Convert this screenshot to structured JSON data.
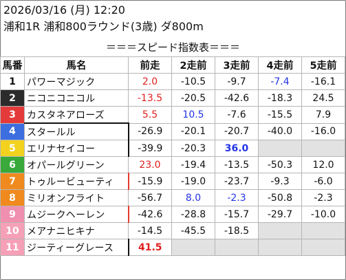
{
  "header": {
    "datetime": "2026/03/16 (月) 12:20",
    "race": "浦和1R 浦和800ラウンド(3歳) ダ800m"
  },
  "table": {
    "title": "＝＝＝スピード指数表＝＝＝",
    "columns": [
      "馬番",
      "馬名",
      "前走",
      "2走前",
      "3走前",
      "4走前",
      "5走前"
    ],
    "rows": [
      {
        "num": "1",
        "name": "パワーマジック",
        "bg": "#ffffff",
        "fg": "#111111",
        "values": [
          {
            "v": "2.0",
            "c": "red"
          },
          {
            "v": "-10.5",
            "c": ""
          },
          {
            "v": "-9.7",
            "c": ""
          },
          {
            "v": "-7.4",
            "c": "blue"
          },
          {
            "v": "-16.1",
            "c": ""
          }
        ]
      },
      {
        "num": "2",
        "name": "ニコニコニコル",
        "bg": "#2b2b2b",
        "fg": "#ffffff",
        "values": [
          {
            "v": "-13.5",
            "c": "red"
          },
          {
            "v": "-20.5",
            "c": ""
          },
          {
            "v": "-42.6",
            "c": ""
          },
          {
            "v": "-18.3",
            "c": ""
          },
          {
            "v": "24.5",
            "c": ""
          }
        ]
      },
      {
        "num": "3",
        "name": "カスタネアローズ",
        "bg": "#e53a3a",
        "fg": "#ffffff",
        "values": [
          {
            "v": "5.5",
            "c": "red"
          },
          {
            "v": "10.5",
            "c": "blue"
          },
          {
            "v": "-7.6",
            "c": ""
          },
          {
            "v": "-15.5",
            "c": ""
          },
          {
            "v": "7.9",
            "c": ""
          }
        ]
      },
      {
        "num": "4",
        "name": "スタールル",
        "bg": "#3d6ee0",
        "fg": "#ffffff",
        "values": [
          {
            "v": "-26.9",
            "c": ""
          },
          {
            "v": "-20.1",
            "c": ""
          },
          {
            "v": "-20.7",
            "c": ""
          },
          {
            "v": "-40.0",
            "c": ""
          },
          {
            "v": "-16.0",
            "c": ""
          }
        ]
      },
      {
        "num": "5",
        "name": "エリナセイコー",
        "bg": "#f2d21e",
        "fg": "#ffffff",
        "values": [
          {
            "v": "-39.9",
            "c": ""
          },
          {
            "v": "-20.3",
            "c": ""
          },
          {
            "v": "36.0",
            "c": "blue bold"
          },
          {
            "v": "",
            "c": "empty"
          },
          {
            "v": "",
            "c": "empty"
          }
        ]
      },
      {
        "num": "6",
        "name": "オパールグリーン",
        "bg": "#39a93b",
        "fg": "#ffffff",
        "values": [
          {
            "v": "23.0",
            "c": "red"
          },
          {
            "v": "-19.4",
            "c": ""
          },
          {
            "v": "-13.5",
            "c": ""
          },
          {
            "v": "-50.3",
            "c": ""
          },
          {
            "v": "12.0",
            "c": ""
          }
        ]
      },
      {
        "num": "7",
        "name": "トゥルービューティ",
        "bg": "#f08a1e",
        "fg": "#ffffff",
        "values": [
          {
            "v": "-15.9",
            "c": ""
          },
          {
            "v": "-19.0",
            "c": ""
          },
          {
            "v": "-23.7",
            "c": ""
          },
          {
            "v": "-9.3",
            "c": ""
          },
          {
            "v": "-6.0",
            "c": ""
          }
        ]
      },
      {
        "num": "8",
        "name": "ミリオンフライト",
        "bg": "#f08a1e",
        "fg": "#ffffff",
        "values": [
          {
            "v": "-56.7",
            "c": ""
          },
          {
            "v": "8.0",
            "c": "blue"
          },
          {
            "v": "-2.3",
            "c": "blue"
          },
          {
            "v": "-50.8",
            "c": ""
          },
          {
            "v": "-2.3",
            "c": ""
          }
        ]
      },
      {
        "num": "9",
        "name": "ムジークヘーレン",
        "bg": "#f08fb0",
        "fg": "#ffffff",
        "values": [
          {
            "v": "-42.6",
            "c": ""
          },
          {
            "v": "-28.8",
            "c": ""
          },
          {
            "v": "-15.7",
            "c": ""
          },
          {
            "v": "-29.7",
            "c": ""
          },
          {
            "v": "-10.0",
            "c": ""
          }
        ]
      },
      {
        "num": "10",
        "name": "メアナニヒキナ",
        "bg": "#f6a0b8",
        "fg": "#ffffff",
        "values": [
          {
            "v": "-14.5",
            "c": ""
          },
          {
            "v": "-45.5",
            "c": ""
          },
          {
            "v": "-18.5",
            "c": ""
          },
          {
            "v": "",
            "c": "empty"
          },
          {
            "v": "",
            "c": "empty"
          }
        ]
      },
      {
        "num": "11",
        "name": "ジーティーグレース",
        "bg": "#f6a0b8",
        "fg": "#ffffff",
        "values": [
          {
            "v": "41.5",
            "c": "red bold"
          },
          {
            "v": "",
            "c": "empty"
          },
          {
            "v": "",
            "c": "empty"
          },
          {
            "v": "",
            "c": "empty"
          },
          {
            "v": "",
            "c": "empty"
          }
        ]
      }
    ]
  }
}
